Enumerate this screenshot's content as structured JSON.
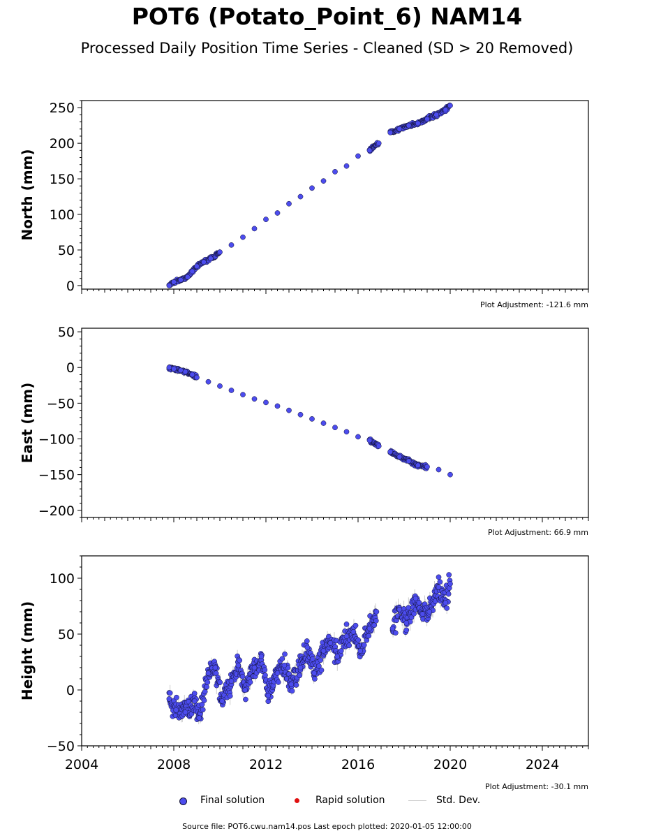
{
  "header": {
    "title": "POT6 (Potato_Point_6) NAM14",
    "subtitle": "Processed Daily Position Time Series - Cleaned (SD > 20 Removed)"
  },
  "legend": {
    "final_label": "Final solution",
    "rapid_label": "Rapid solution",
    "std_label": "Std. Dev."
  },
  "footer": {
    "source": "Source file: POT6.cwu.nam14.pos  Last epoch plotted: 2020-01-05 12:00:00"
  },
  "colors": {
    "final": "#4c4cee",
    "final_edge": "#111133",
    "rapid": "#e01010",
    "std_dev": "#cccccc"
  },
  "chart_data": [
    {
      "type": "scatter",
      "ylabel": "North (mm)",
      "adjustment": "Plot Adjustment: -121.6 mm",
      "xlim": [
        2004,
        2026
      ],
      "ylim": [
        -5,
        260
      ],
      "yticks": [
        0,
        50,
        100,
        150,
        200,
        250
      ],
      "xticks": [],
      "series": [
        {
          "name": "Final solution",
          "x": [
            2007.8,
            2008.0,
            2008.3,
            2008.6,
            2008.8,
            2009.0,
            2009.3,
            2009.6,
            2010.0,
            2010.5,
            2011.0,
            2011.5,
            2012.0,
            2012.5,
            2013.0,
            2013.5,
            2014.0,
            2014.5,
            2015.0,
            2015.5,
            2016.0,
            2016.5,
            2016.9,
            2017.4,
            2017.8,
            2018.2,
            2018.6,
            2019.0,
            2019.4,
            2019.8,
            2020.0
          ],
          "y": [
            0,
            5,
            8,
            12,
            20,
            27,
            33,
            38,
            47,
            57,
            68,
            80,
            93,
            102,
            115,
            125,
            137,
            147,
            160,
            168,
            182,
            190,
            200,
            215,
            220,
            225,
            228,
            234,
            240,
            247,
            253
          ]
        }
      ]
    },
    {
      "type": "scatter",
      "ylabel": "East (mm)",
      "adjustment": "Plot Adjustment: 66.9 mm",
      "xlim": [
        2004,
        2026
      ],
      "ylim": [
        -210,
        55
      ],
      "yticks": [
        50,
        0,
        -50,
        -100,
        -150,
        -200
      ],
      "xticks": [],
      "series": [
        {
          "name": "Final solution",
          "x": [
            2007.8,
            2008.0,
            2008.3,
            2008.5,
            2008.8,
            2009.0,
            2009.5,
            2010.0,
            2010.5,
            2011.0,
            2011.5,
            2012.0,
            2012.5,
            2013.0,
            2013.5,
            2014.0,
            2014.5,
            2015.0,
            2015.5,
            2016.0,
            2016.5,
            2016.9,
            2017.4,
            2017.8,
            2018.2,
            2018.6,
            2019.0,
            2019.5,
            2020.0
          ],
          "y": [
            0,
            -2,
            -4,
            -6,
            -10,
            -14,
            -20,
            -26,
            -32,
            -38,
            -44,
            -49,
            -54,
            -60,
            -66,
            -72,
            -78,
            -84,
            -90,
            -97,
            -102,
            -110,
            -118,
            -125,
            -131,
            -137,
            -139,
            -143,
            -150
          ]
        }
      ]
    },
    {
      "type": "scatter",
      "ylabel": "Height (mm)",
      "adjustment": "Plot Adjustment: -30.1 mm",
      "xlim": [
        2004,
        2026
      ],
      "ylim": [
        -50,
        120
      ],
      "yticks": [
        100,
        50,
        0,
        -50
      ],
      "xticks": [
        "2004",
        "2008",
        "2012",
        "2016",
        "2020",
        "2024"
      ],
      "series": [
        {
          "name": "Final solution",
          "x": [
            2007.8,
            2008.1,
            2008.5,
            2008.9,
            2009.1,
            2009.5,
            2009.8,
            2010.1,
            2010.5,
            2010.8,
            2011.1,
            2011.5,
            2011.8,
            2012.1,
            2012.5,
            2012.8,
            2013.1,
            2013.5,
            2013.8,
            2014.1,
            2014.5,
            2014.8,
            2015.1,
            2015.5,
            2015.8,
            2016.1,
            2016.5,
            2016.8,
            2017.5,
            2017.8,
            2018.1,
            2018.5,
            2018.8,
            2019.1,
            2019.5,
            2019.8,
            2020.0
          ],
          "y": [
            -8,
            -18,
            -20,
            -10,
            -25,
            15,
            20,
            -10,
            8,
            22,
            0,
            20,
            30,
            -5,
            15,
            22,
            5,
            20,
            38,
            15,
            35,
            42,
            30,
            48,
            52,
            35,
            55,
            70,
            55,
            72,
            60,
            82,
            68,
            70,
            92,
            78,
            95
          ]
        }
      ]
    }
  ]
}
